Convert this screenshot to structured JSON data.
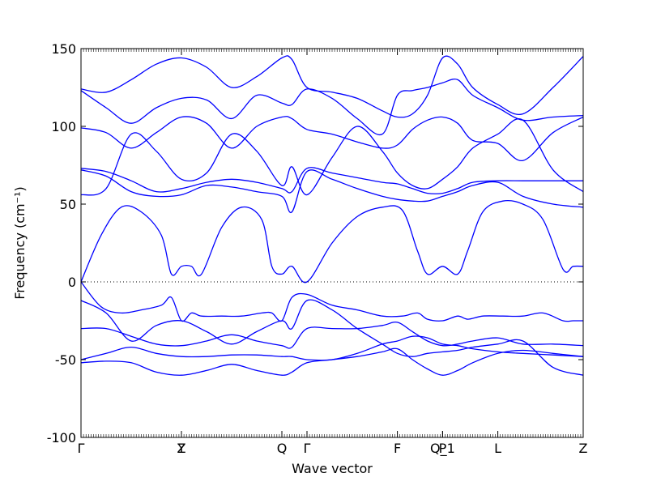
{
  "chart_data": {
    "type": "line",
    "title": "",
    "xlabel": "Wave vector",
    "ylabel": "Frequency (cm⁻¹)",
    "ylim": [
      -100,
      150
    ],
    "yticks": [
      -100,
      -50,
      0,
      50,
      100,
      150
    ],
    "grid": false,
    "legend": "none",
    "line_color": "#0000ff",
    "zero_line": {
      "value": 0,
      "style": "dotted",
      "color": "#000000"
    },
    "high_symmetry_points": [
      {
        "label": "Γ",
        "x": 0.0
      },
      {
        "label": "Y",
        "x": 1.0
      },
      {
        "label": "Z",
        "x": 1.0
      },
      {
        "label": "Q",
        "x": 2.0
      },
      {
        "label": "Γ",
        "x": 2.25
      },
      {
        "label": "F",
        "x": 3.15
      },
      {
        "label": "P",
        "x": 3.6
      },
      {
        "label": "Q_1",
        "x": 3.6
      },
      {
        "label": "L",
        "x": 4.15
      },
      {
        "label": "Z",
        "x": 5.0
      }
    ],
    "x_range": [
      0,
      5
    ],
    "series": [
      {
        "x": [
          0,
          0.25,
          0.5,
          0.75,
          1.0,
          1.25,
          1.5,
          1.75,
          2.0,
          2.1,
          2.25,
          2.5,
          2.75,
          3.0,
          3.15,
          3.3,
          3.45,
          3.6,
          3.75,
          3.9,
          4.15,
          4.4,
          4.7,
          5.0
        ],
        "values": [
          124,
          122,
          130,
          140,
          144,
          138,
          125,
          132,
          144,
          143,
          125,
          122,
          118,
          110,
          106,
          108,
          120,
          144,
          140,
          125,
          114,
          108,
          125,
          145
        ]
      },
      {
        "x": [
          0,
          0.25,
          0.5,
          0.75,
          1.0,
          1.25,
          1.5,
          1.75,
          2.0,
          2.1,
          2.25,
          2.5,
          2.75,
          3.0,
          3.15,
          3.3,
          3.45,
          3.6,
          3.75,
          3.9,
          4.15,
          4.4,
          4.7,
          5.0
        ],
        "values": [
          123,
          112,
          102,
          112,
          118,
          117,
          105,
          120,
          115,
          114,
          124,
          118,
          105,
          95,
          120,
          123,
          125,
          128,
          130,
          120,
          112,
          104,
          106,
          107
        ]
      },
      {
        "x": [
          0,
          0.25,
          0.5,
          0.75,
          1.0,
          1.25,
          1.5,
          1.75,
          2.0,
          2.1,
          2.25,
          2.5,
          2.75,
          3.0,
          3.15,
          3.3,
          3.45,
          3.6,
          3.75,
          3.9,
          4.15,
          4.4,
          4.7,
          5.0
        ],
        "values": [
          99,
          96,
          86,
          96,
          106,
          102,
          86,
          100,
          106,
          105,
          98,
          95,
          90,
          86,
          88,
          98,
          104,
          106,
          102,
          91,
          89,
          78,
          96,
          106
        ]
      },
      {
        "x": [
          0,
          0.25,
          0.5,
          0.75,
          1.0,
          1.25,
          1.5,
          1.75,
          2.0,
          2.1,
          2.25,
          2.5,
          2.75,
          3.0,
          3.15,
          3.3,
          3.45,
          3.6,
          3.75,
          3.9,
          4.15,
          4.4,
          4.7,
          5.0
        ],
        "values": [
          56,
          60,
          95,
          84,
          66,
          70,
          95,
          84,
          62,
          74,
          56,
          80,
          100,
          84,
          70,
          62,
          60,
          66,
          74,
          86,
          95,
          104,
          72,
          58
        ]
      },
      {
        "x": [
          0,
          0.25,
          0.5,
          0.75,
          1.0,
          1.25,
          1.5,
          1.75,
          2.0,
          2.1,
          2.25,
          2.5,
          2.75,
          3.0,
          3.15,
          3.3,
          3.45,
          3.6,
          3.75,
          3.9,
          4.15,
          4.4,
          4.7,
          5.0
        ],
        "values": [
          73,
          71,
          65,
          58,
          60,
          64,
          66,
          64,
          60,
          58,
          73,
          70,
          67,
          64,
          63,
          60,
          57,
          57,
          60,
          64,
          65,
          65,
          65,
          65
        ]
      },
      {
        "x": [
          0,
          0.25,
          0.5,
          0.75,
          1.0,
          1.25,
          1.5,
          1.75,
          2.0,
          2.1,
          2.25,
          2.5,
          2.75,
          3.0,
          3.15,
          3.3,
          3.45,
          3.6,
          3.75,
          3.9,
          4.15,
          4.4,
          4.7,
          5.0
        ],
        "values": [
          72,
          68,
          58,
          55,
          56,
          62,
          61,
          58,
          55,
          45,
          71,
          66,
          60,
          55,
          53,
          52,
          52,
          55,
          58,
          62,
          64,
          55,
          50,
          48
        ]
      },
      {
        "x": [
          0,
          0.2,
          0.4,
          0.6,
          0.8,
          0.9,
          1.0,
          1.1,
          1.2,
          1.4,
          1.6,
          1.8,
          1.9,
          2.0,
          2.1,
          2.25,
          2.5,
          2.75,
          3.0,
          3.2,
          3.35,
          3.45,
          3.6,
          3.75,
          3.85,
          4.0,
          4.2,
          4.4,
          4.6,
          4.8,
          4.9,
          5.0
        ],
        "values": [
          0,
          30,
          48,
          45,
          30,
          5,
          10,
          10,
          5,
          35,
          48,
          40,
          10,
          5,
          10,
          0,
          25,
          42,
          48,
          46,
          20,
          5,
          10,
          5,
          20,
          45,
          52,
          50,
          40,
          8,
          10,
          10
        ]
      },
      {
        "x": [
          0,
          0.2,
          0.4,
          0.6,
          0.8,
          0.9,
          1.0,
          1.1,
          1.2,
          1.4,
          1.6,
          1.8,
          1.9,
          2.0,
          2.1,
          2.25,
          2.5,
          2.75,
          3.0,
          3.2,
          3.35,
          3.45,
          3.6,
          3.75,
          3.85,
          4.0,
          4.2,
          4.4,
          4.6,
          4.8,
          4.9,
          5.0
        ],
        "values": [
          0,
          -16,
          -20,
          -18,
          -15,
          -10,
          -25,
          -20,
          -22,
          -22,
          -22,
          -20,
          -20,
          -25,
          -10,
          -8,
          -15,
          -18,
          -22,
          -22,
          -20,
          -24,
          -25,
          -22,
          -24,
          -22,
          -22,
          -22,
          -20,
          -25,
          -25,
          -25
        ]
      },
      {
        "x": [
          0,
          0.25,
          0.5,
          0.75,
          1.0,
          1.25,
          1.5,
          1.75,
          2.0,
          2.1,
          2.25,
          2.5,
          2.75,
          3.0,
          3.15,
          3.3,
          3.45,
          3.6,
          3.75,
          3.9,
          4.15,
          4.4,
          4.7,
          5.0
        ],
        "values": [
          -12,
          -20,
          -38,
          -28,
          -25,
          -32,
          -40,
          -32,
          -25,
          -30,
          -12,
          -18,
          -30,
          -40,
          -46,
          -48,
          -46,
          -45,
          -44,
          -42,
          -40,
          -38,
          -55,
          -60
        ]
      },
      {
        "x": [
          0,
          0.25,
          0.5,
          0.75,
          1.0,
          1.25,
          1.5,
          1.75,
          2.0,
          2.1,
          2.25,
          2.5,
          2.75,
          3.0,
          3.15,
          3.3,
          3.45,
          3.6,
          3.75,
          3.9,
          4.15,
          4.4,
          4.7,
          5.0
        ],
        "values": [
          -30,
          -30,
          -35,
          -40,
          -41,
          -38,
          -34,
          -38,
          -41,
          -42,
          -30,
          -30,
          -30,
          -28,
          -26,
          -32,
          -38,
          -41,
          -40,
          -38,
          -36,
          -40,
          -40,
          -41
        ]
      },
      {
        "x": [
          0,
          0.25,
          0.5,
          0.75,
          1.0,
          1.25,
          1.5,
          1.75,
          2.0,
          2.1,
          2.25,
          2.5,
          2.75,
          3.0,
          3.15,
          3.3,
          3.45,
          3.6,
          3.75,
          3.9,
          4.15,
          4.4,
          4.7,
          5.0
        ],
        "values": [
          -50,
          -46,
          -42,
          -46,
          -48,
          -48,
          -47,
          -47,
          -48,
          -48,
          -50,
          -50,
          -46,
          -40,
          -38,
          -35,
          -36,
          -40,
          -41,
          -43,
          -45,
          -46,
          -47,
          -48
        ]
      },
      {
        "x": [
          0,
          0.25,
          0.5,
          0.75,
          1.0,
          1.25,
          1.5,
          1.75,
          2.0,
          2.1,
          2.25,
          2.5,
          2.75,
          3.0,
          3.15,
          3.3,
          3.45,
          3.6,
          3.75,
          3.9,
          4.15,
          4.4,
          4.7,
          5.0
        ],
        "values": [
          -52,
          -51,
          -52,
          -58,
          -60,
          -57,
          -53,
          -57,
          -60,
          -58,
          -52,
          -50,
          -48,
          -45,
          -43,
          -50,
          -56,
          -60,
          -57,
          -52,
          -46,
          -44,
          -46,
          -48
        ]
      }
    ]
  }
}
